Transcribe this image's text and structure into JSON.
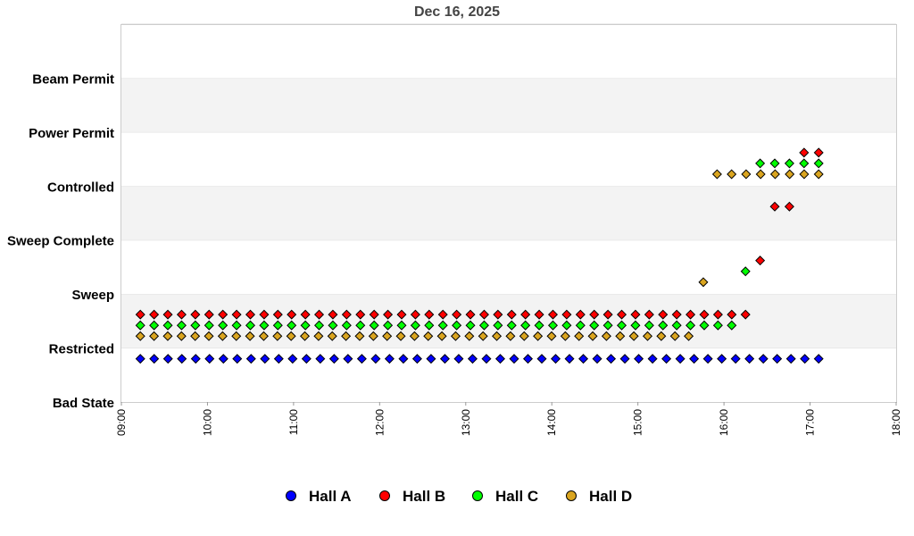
{
  "chart_data": {
    "type": "scatter",
    "title": "Dec 16, 2025",
    "xlabel": "",
    "ylabel": "",
    "x_ticks": [
      "09:00",
      "10:00",
      "11:00",
      "12:00",
      "13:00",
      "14:00",
      "15:00",
      "16:00",
      "17:00",
      "18:00"
    ],
    "x_range": [
      9.0,
      18.0
    ],
    "y_categories": [
      "Bad State",
      "Restricted",
      "Sweep",
      "Sweep Complete",
      "Controlled",
      "Power Permit",
      "Beam Permit"
    ],
    "grid": "alternating horizontal bands",
    "legend_position": "bottom",
    "series": [
      {
        "name": "Hall A",
        "color": "#0000ff",
        "points": [
          {
            "time_start": 9.22,
            "time_end": 17.1,
            "count": 50,
            "level": 0.8
          }
        ]
      },
      {
        "name": "Hall B",
        "color": "#ff0000",
        "points": [
          {
            "time_start": 9.22,
            "time_end": 16.25,
            "count": 45,
            "level": 1.62
          },
          {
            "time": 16.42,
            "level": 2.62
          },
          {
            "time": 16.59,
            "level": 3.62
          },
          {
            "time": 16.76,
            "level": 3.62
          },
          {
            "time": 16.93,
            "level": 4.62
          },
          {
            "time": 17.1,
            "level": 4.62
          }
        ]
      },
      {
        "name": "Hall C",
        "color": "#00ff00",
        "points": [
          {
            "time_start": 9.22,
            "time_end": 16.09,
            "count": 44,
            "level": 1.42
          },
          {
            "time": 16.25,
            "level": 2.42
          },
          {
            "time_start": 16.42,
            "time_end": 17.1,
            "count": 5,
            "level": 4.42
          }
        ]
      },
      {
        "name": "Hall D",
        "color": "#daa520",
        "points": [
          {
            "time_start": 9.22,
            "time_end": 15.59,
            "count": 41,
            "level": 1.22
          },
          {
            "time": 15.76,
            "level": 2.22
          },
          {
            "time_start": 15.92,
            "time_end": 17.1,
            "count": 8,
            "level": 4.22
          }
        ]
      }
    ]
  }
}
